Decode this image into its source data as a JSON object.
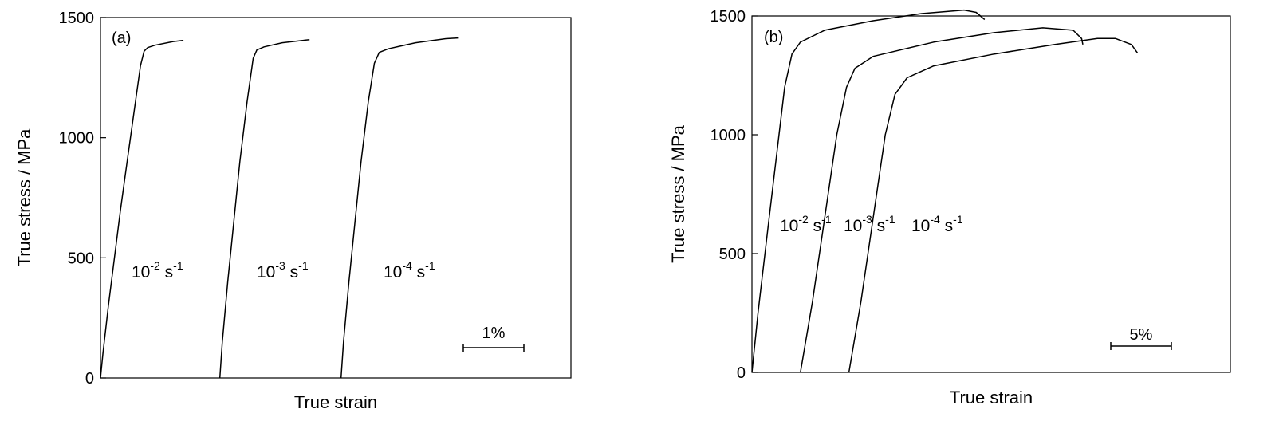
{
  "chart_data": [
    {
      "type": "line",
      "panel": "(a)",
      "ylabel": "True stress / MPa",
      "xlabel": "True strain",
      "ylim": [
        0,
        1500
      ],
      "yticks": [
        0,
        500,
        1000,
        1500
      ],
      "x_ticks_shown": false,
      "scale_bar": "1%",
      "grid": false,
      "series": [
        {
          "name": "10-2 s-1",
          "label": {
            "base": "10",
            "exp1": "-2",
            "mid": " s",
            "exp2": "-1"
          },
          "points": [
            [
              0.0,
              0
            ],
            [
              0.04,
              100
            ],
            [
              0.13,
              300
            ],
            [
              0.23,
              500
            ],
            [
              0.33,
              700
            ],
            [
              0.44,
              900
            ],
            [
              0.55,
              1100
            ],
            [
              0.66,
              1300
            ],
            [
              0.72,
              1360
            ],
            [
              0.78,
              1375
            ],
            [
              0.9,
              1385
            ],
            [
              1.2,
              1400
            ],
            [
              1.37,
              1405
            ]
          ]
        },
        {
          "name": "10-3 s-1",
          "label": {
            "base": "10",
            "exp1": "-3",
            "mid": " s",
            "exp2": "-1"
          },
          "points": [
            [
              1.97,
              0
            ],
            [
              2.01,
              150
            ],
            [
              2.1,
              400
            ],
            [
              2.2,
              650
            ],
            [
              2.3,
              900
            ],
            [
              2.42,
              1150
            ],
            [
              2.52,
              1330
            ],
            [
              2.58,
              1365
            ],
            [
              2.7,
              1378
            ],
            [
              3.0,
              1395
            ],
            [
              3.35,
              1405
            ],
            [
              3.45,
              1408
            ]
          ]
        },
        {
          "name": "10-4 s-1",
          "label": {
            "base": "10",
            "exp1": "-4",
            "mid": " s",
            "exp2": "-1"
          },
          "points": [
            [
              3.97,
              0
            ],
            [
              4.01,
              150
            ],
            [
              4.1,
              400
            ],
            [
              4.2,
              650
            ],
            [
              4.3,
              900
            ],
            [
              4.42,
              1150
            ],
            [
              4.52,
              1310
            ],
            [
              4.6,
              1355
            ],
            [
              4.75,
              1370
            ],
            [
              5.2,
              1395
            ],
            [
              5.7,
              1412
            ],
            [
              5.9,
              1415
            ]
          ]
        }
      ]
    },
    {
      "type": "line",
      "panel": "(b)",
      "ylabel": "True stress / MPa",
      "xlabel": "True strain",
      "ylim": [
        0,
        1500
      ],
      "yticks": [
        0,
        500,
        1000,
        1500
      ],
      "x_ticks_shown": false,
      "scale_bar": "5%",
      "grid": false,
      "series": [
        {
          "name": "10-2 s-1",
          "label": {
            "base": "10",
            "exp1": "-2",
            "mid": " s",
            "exp2": "-1"
          },
          "points": [
            [
              0.0,
              0
            ],
            [
              0.5,
              250
            ],
            [
              1.3,
              600
            ],
            [
              2.0,
              900
            ],
            [
              2.7,
              1200
            ],
            [
              3.3,
              1340
            ],
            [
              4.0,
              1390
            ],
            [
              6.0,
              1440
            ],
            [
              10.0,
              1480
            ],
            [
              14.0,
              1510
            ],
            [
              17.5,
              1525
            ],
            [
              18.5,
              1515
            ],
            [
              19.2,
              1485
            ]
          ]
        },
        {
          "name": "10-3 s-1",
          "label": {
            "base": "10",
            "exp1": "-3",
            "mid": " s",
            "exp2": "-1"
          },
          "points": [
            [
              4.0,
              0
            ],
            [
              5.0,
              300
            ],
            [
              6.0,
              650
            ],
            [
              7.0,
              1000
            ],
            [
              7.8,
              1200
            ],
            [
              8.5,
              1280
            ],
            [
              10.0,
              1330
            ],
            [
              15.0,
              1390
            ],
            [
              20.0,
              1430
            ],
            [
              24.0,
              1450
            ],
            [
              26.5,
              1440
            ],
            [
              27.2,
              1405
            ],
            [
              27.3,
              1380
            ]
          ]
        },
        {
          "name": "10-4 s-1",
          "label": {
            "base": "10",
            "exp1": "-4",
            "mid": " s",
            "exp2": "-1"
          },
          "points": [
            [
              8.0,
              0
            ],
            [
              9.0,
              300
            ],
            [
              10.0,
              650
            ],
            [
              11.0,
              1000
            ],
            [
              11.8,
              1170
            ],
            [
              12.8,
              1240
            ],
            [
              15.0,
              1290
            ],
            [
              20.0,
              1340
            ],
            [
              25.0,
              1380
            ],
            [
              28.5,
              1405
            ],
            [
              30.0,
              1405
            ],
            [
              31.3,
              1380
            ],
            [
              31.8,
              1345
            ]
          ]
        }
      ]
    }
  ]
}
